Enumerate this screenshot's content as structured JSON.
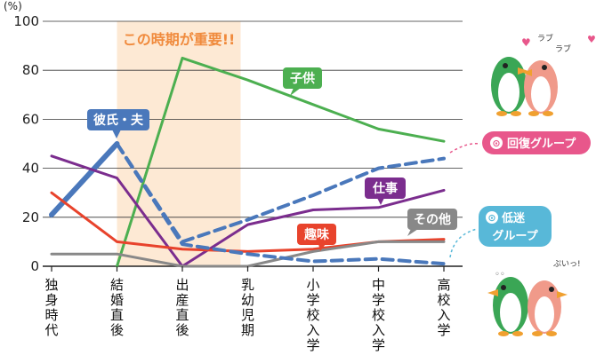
{
  "chart_data": {
    "type": "line",
    "unit_label": "(%)",
    "y_ticks": [
      "100",
      "80",
      "60",
      "40",
      "20",
      "0"
    ],
    "ylim": [
      0,
      100
    ],
    "categories": [
      "独身時代",
      "結婚直後",
      "出産直後",
      "乳幼児期",
      "小学校入学",
      "中学校入学",
      "高校入学"
    ],
    "highlight_label": "この時期が重要!!",
    "highlight_color": "#fde9d4",
    "series": [
      {
        "name": "彼氏・夫",
        "group": "回復グループ",
        "style": "solid",
        "color": "#4a78bb",
        "values": [
          21,
          50,
          null,
          null,
          null,
          null,
          null
        ]
      },
      {
        "name": "彼氏・夫",
        "group": "低迷グループ",
        "style": "solid",
        "color": "#4a78bb",
        "values": [
          null,
          null,
          null,
          null,
          null,
          null,
          null
        ]
      },
      {
        "name": "子供",
        "style": "solid",
        "color": "#4caf50",
        "values": [
          null,
          0,
          85,
          76,
          66,
          56,
          51
        ]
      },
      {
        "name": "仕事",
        "style": "solid",
        "color": "#7b2d8e",
        "values": [
          45,
          36,
          0,
          17,
          23,
          24,
          31
        ]
      },
      {
        "name": "趣味",
        "style": "solid",
        "color": "#e8432c",
        "values": [
          30,
          10,
          7,
          6,
          7,
          10,
          11
        ]
      },
      {
        "name": "その他",
        "style": "solid",
        "color": "#888888",
        "values": [
          5,
          5,
          0,
          0,
          6,
          10,
          10
        ]
      },
      {
        "name": "回復グループ",
        "style": "dashed",
        "color": "#4a78bb",
        "values": [
          null,
          50,
          10,
          19,
          29,
          40,
          44
        ]
      },
      {
        "name": "低迷グループ",
        "style": "dashed",
        "color": "#4a78bb",
        "values": [
          null,
          50,
          9,
          5,
          2,
          3,
          1
        ]
      }
    ],
    "labels": {
      "husband": "彼氏・夫",
      "child": "子供",
      "work": "仕事",
      "hobby": "趣味",
      "other": "その他"
    },
    "callouts": {
      "recovery": "回復グループ",
      "decline_line1": "低迷",
      "decline_line2": "グループ"
    },
    "decor_text": {
      "love": "ラブ",
      "love2": "ラブ",
      "pui": "ぷいっ!"
    },
    "colors": {
      "husband_label": "#4a78bb",
      "child_label": "#4caf50",
      "work_label": "#7b2d8e",
      "hobby_label": "#e8432c",
      "other_label": "#888888",
      "recovery_callout": "#e8578b",
      "decline_callout": "#58b8d8"
    }
  }
}
